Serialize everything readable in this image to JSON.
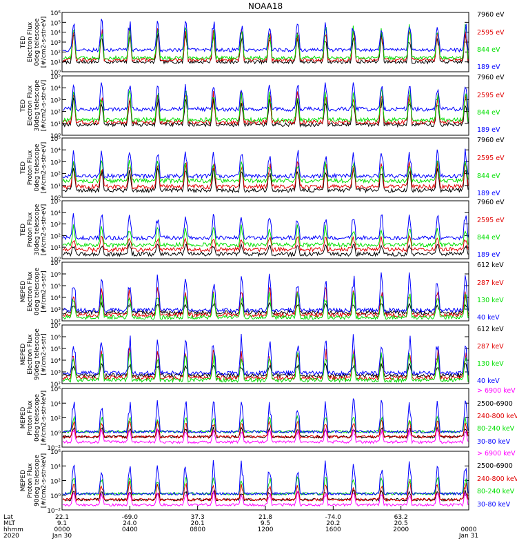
{
  "title": "NOAA18",
  "colors": {
    "black": "#000000",
    "red": "#e00000",
    "green": "#00e000",
    "blue": "#0000ff",
    "magenta": "#ff00ff"
  },
  "chart_data": [
    {
      "type": "line",
      "panel": "TED electron 0deg",
      "ylabel": [
        "TED",
        "Electron Flux",
        "0deg telescope",
        "[#/cm2-s-str-eV]"
      ],
      "yscale": "log",
      "ylim_exp": [
        0,
        6
      ],
      "ytick_labels": [
        "10^0",
        "10^1",
        "10^2",
        "10^3",
        "10^4",
        "10^5",
        "10^6"
      ],
      "series": [
        {
          "name": "7960 eV",
          "color": "black",
          "baseline_exp": 1.0,
          "peak_exp": 4.3
        },
        {
          "name": "2595 eV",
          "color": "red",
          "baseline_exp": 1.2,
          "peak_exp": 4.6
        },
        {
          "name": "844 eV",
          "color": "green",
          "baseline_exp": 1.4,
          "peak_exp": 4.9
        },
        {
          "name": "189 eV",
          "color": "blue",
          "baseline_exp": 2.2,
          "peak_exp": 5.4
        }
      ]
    },
    {
      "type": "line",
      "panel": "TED electron 30deg",
      "ylabel": [
        "TED",
        "Electron Flux",
        "30deg telescope",
        "[#/cm2-s-str-eV]"
      ],
      "yscale": "log",
      "ylim_exp": [
        0,
        5
      ],
      "ytick_labels": [
        "10^0",
        "10^1",
        "10^2",
        "10^3",
        "10^4",
        "10^5"
      ],
      "series": [
        {
          "name": "7960 eV",
          "color": "black",
          "baseline_exp": 0.9,
          "peak_exp": 3.5
        },
        {
          "name": "2595 eV",
          "color": "red",
          "baseline_exp": 1.1,
          "peak_exp": 3.8
        },
        {
          "name": "844 eV",
          "color": "green",
          "baseline_exp": 1.3,
          "peak_exp": 4.1
        },
        {
          "name": "189 eV",
          "color": "blue",
          "baseline_exp": 2.2,
          "peak_exp": 4.6
        }
      ]
    },
    {
      "type": "line",
      "panel": "TED proton 0deg",
      "ylabel": [
        "TED",
        "Proton Flux",
        "0deg telescope",
        "[#/cm2-s-str-eV]"
      ],
      "yscale": "log",
      "ylim_exp": [
        0,
        5
      ],
      "ytick_labels": [
        "10^0",
        "10^1",
        "10^2",
        "10^3",
        "10^4",
        "10^5"
      ],
      "series": [
        {
          "name": "7960 eV",
          "color": "black",
          "baseline_exp": 0.6,
          "peak_exp": 2.6
        },
        {
          "name": "2595 eV",
          "color": "red",
          "baseline_exp": 0.9,
          "peak_exp": 3.2
        },
        {
          "name": "844 eV",
          "color": "green",
          "baseline_exp": 1.4,
          "peak_exp": 3.2
        },
        {
          "name": "189 eV",
          "color": "blue",
          "baseline_exp": 1.8,
          "peak_exp": 4.2
        }
      ]
    },
    {
      "type": "line",
      "panel": "TED proton 30deg",
      "ylabel": [
        "TED",
        "Proton Flux",
        "30deg telescope",
        "[#/cm2-s-str-eV]"
      ],
      "yscale": "log",
      "ylim_exp": [
        0,
        5
      ],
      "ytick_labels": [
        "10^0",
        "10^1",
        "10^2",
        "10^3",
        "10^4",
        "10^5"
      ],
      "series": [
        {
          "name": "7960 eV",
          "color": "black",
          "baseline_exp": 0.4,
          "peak_exp": 1.4
        },
        {
          "name": "2595 eV",
          "color": "red",
          "baseline_exp": 0.8,
          "peak_exp": 2.0
        },
        {
          "name": "844 eV",
          "color": "green",
          "baseline_exp": 1.2,
          "peak_exp": 3.0
        },
        {
          "name": "189 eV",
          "color": "blue",
          "baseline_exp": 1.8,
          "peak_exp": 4.0
        }
      ]
    },
    {
      "type": "line",
      "panel": "MEPED electron 0deg",
      "ylabel": [
        "MEPED",
        "Electron Flux",
        "0deg telescope",
        "[#/cm2-s-str]"
      ],
      "yscale": "log",
      "ylim_exp": [
        2,
        7
      ],
      "ytick_labels": [
        "10^2",
        "10^3",
        "10^4",
        "10^5",
        "10^6",
        "10^7"
      ],
      "series": [
        {
          "name": "612 keV",
          "color": "black",
          "baseline_exp": 2.7,
          "peak_exp": 3.6
        },
        {
          "name": "287 keV",
          "color": "red",
          "baseline_exp": 2.5,
          "peak_exp": 5.0
        },
        {
          "name": "130 keV",
          "color": "green",
          "baseline_exp": 2.3,
          "peak_exp": 4.6
        },
        {
          "name": "40 keV",
          "color": "blue",
          "baseline_exp": 2.9,
          "peak_exp": 6.2
        }
      ]
    },
    {
      "type": "line",
      "panel": "MEPED electron 90deg",
      "ylabel": [
        "MEPED",
        "Electron Flux",
        "90deg telescope",
        "[#/cm2-s-str]"
      ],
      "yscale": "log",
      "ylim_exp": [
        2,
        7
      ],
      "ytick_labels": [
        "10^2",
        "10^3",
        "10^4",
        "10^5",
        "10^6",
        "10^7"
      ],
      "series": [
        {
          "name": "612 keV",
          "color": "black",
          "baseline_exp": 2.7,
          "peak_exp": 3.8
        },
        {
          "name": "287 keV",
          "color": "red",
          "baseline_exp": 2.5,
          "peak_exp": 5.2
        },
        {
          "name": "130 keV",
          "color": "green",
          "baseline_exp": 2.3,
          "peak_exp": 5.0
        },
        {
          "name": "40 keV",
          "color": "blue",
          "baseline_exp": 2.9,
          "peak_exp": 6.4
        }
      ]
    },
    {
      "type": "line",
      "panel": "MEPED proton 0deg",
      "ylabel": [
        "MEPED",
        "Proton Flux",
        "0deg telescope",
        "[#/cm2-s-str-keV]"
      ],
      "yscale": "log",
      "ylim_exp": [
        -2,
        6
      ],
      "ytick_labels": [
        "10^-2",
        "10^0",
        "10^2",
        "10^4",
        "10^6"
      ],
      "series": [
        {
          "name": "> 6900 keV",
          "color": "magenta",
          "baseline_exp": -1.3,
          "peak_exp": 0.6
        },
        {
          "name": "2500-6900",
          "color": "black",
          "baseline_exp": -0.6,
          "peak_exp": 0.8
        },
        {
          "name": "240-800 keV",
          "color": "red",
          "baseline_exp": -0.6,
          "peak_exp": 1.8
        },
        {
          "name": "80-240 keV",
          "color": "green",
          "baseline_exp": 0.1,
          "peak_exp": 2.4
        },
        {
          "name": "30-80 keV",
          "color": "blue",
          "baseline_exp": 0.1,
          "peak_exp": 4.8
        }
      ]
    },
    {
      "type": "line",
      "panel": "MEPED proton 90deg",
      "ylabel": [
        "MEPED",
        "Proton Flux",
        "90deg telescope",
        "[#/cm2-s-str-keV]"
      ],
      "yscale": "log",
      "ylim_exp": [
        -2,
        6
      ],
      "ytick_labels": [
        "10^-2",
        "10^0",
        "10^2",
        "10^4",
        "10^6"
      ],
      "series": [
        {
          "name": "> 6900 keV",
          "color": "magenta",
          "baseline_exp": -1.3,
          "peak_exp": 0.6
        },
        {
          "name": "2500-6900",
          "color": "black",
          "baseline_exp": -0.6,
          "peak_exp": 0.8
        },
        {
          "name": "240-800 keV",
          "color": "red",
          "baseline_exp": -0.6,
          "peak_exp": 2.0
        },
        {
          "name": "80-240 keV",
          "color": "green",
          "baseline_exp": 0.2,
          "peak_exp": 2.8
        },
        {
          "name": "30-80 keV",
          "color": "blue",
          "baseline_exp": 0.2,
          "peak_exp": 5.0
        }
      ]
    }
  ],
  "x_axis": {
    "row_labels": [
      "Lat",
      "MLT",
      "hhmm",
      "2020"
    ],
    "tick_hours": [
      0,
      4,
      8,
      12,
      16,
      20,
      24
    ],
    "lat": [
      "22.1",
      "-69.0",
      "37.3",
      "21.8",
      "-74.0",
      "63.2"
    ],
    "mlt": [
      "9.1",
      "24.0",
      "20.1",
      "9.5",
      "20.2",
      "20.5"
    ],
    "hhmm": [
      "0000",
      "0400",
      "0800",
      "1200",
      "1600",
      "2000",
      "0000"
    ],
    "date_start": "Jan 30",
    "date_end": "Jan 31"
  }
}
